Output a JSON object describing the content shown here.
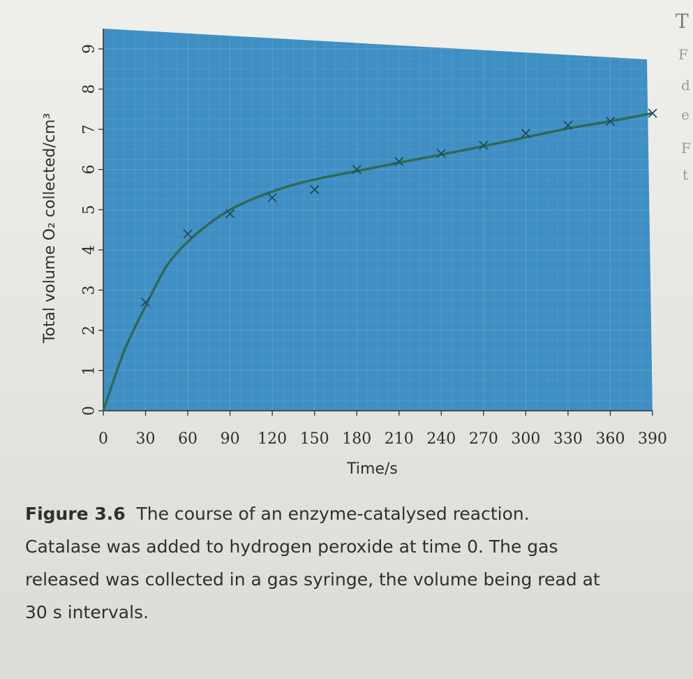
{
  "figure": {
    "number": "Figure 3.6",
    "caption_line1": "The course of an enzyme-catalysed reaction.",
    "caption_line2": "Catalase was added to hydrogen peroxide at time 0. The gas",
    "caption_line3": "released was collected in a gas syringe, the volume being read at",
    "caption_line4": "30 s intervals."
  },
  "margin_letters": [
    "T",
    "F",
    "d",
    "e",
    "F",
    "t"
  ],
  "colors": {
    "plot_background": "#3f8fc4",
    "curve": "#2f6a55",
    "markers": "#1f4e5e",
    "text": "#2e2e2e"
  },
  "chart_data": {
    "type": "scatter",
    "xlabel": "Time/s",
    "ylabel": "Total volume O₂ collected/cm³",
    "xlim": [
      0,
      390
    ],
    "ylim": [
      0,
      9
    ],
    "x_ticks": [
      "0",
      "30",
      "60",
      "90",
      "120",
      "150",
      "180",
      "210",
      "240",
      "270",
      "300",
      "330",
      "360",
      "390"
    ],
    "y_ticks": [
      "0",
      "1",
      "2",
      "3",
      "4",
      "5",
      "6",
      "7",
      "8",
      "9"
    ],
    "grid": true,
    "points": {
      "x": [
        30,
        60,
        90,
        120,
        150,
        180,
        210,
        240,
        270,
        300,
        330,
        360,
        390
      ],
      "y": [
        2.7,
        4.4,
        4.9,
        5.3,
        5.5,
        6.0,
        6.2,
        6.4,
        6.6,
        6.9,
        7.1,
        7.2,
        7.4
      ]
    },
    "curve": {
      "x": [
        0,
        15,
        30,
        45,
        60,
        75,
        90,
        105,
        120,
        135,
        150,
        165,
        180,
        210,
        240,
        270,
        300,
        330,
        360,
        390
      ],
      "y": [
        0,
        1.5,
        2.6,
        3.6,
        4.2,
        4.65,
        5.0,
        5.25,
        5.45,
        5.62,
        5.75,
        5.86,
        5.96,
        6.17,
        6.37,
        6.58,
        6.8,
        7.02,
        7.2,
        7.4
      ]
    }
  }
}
